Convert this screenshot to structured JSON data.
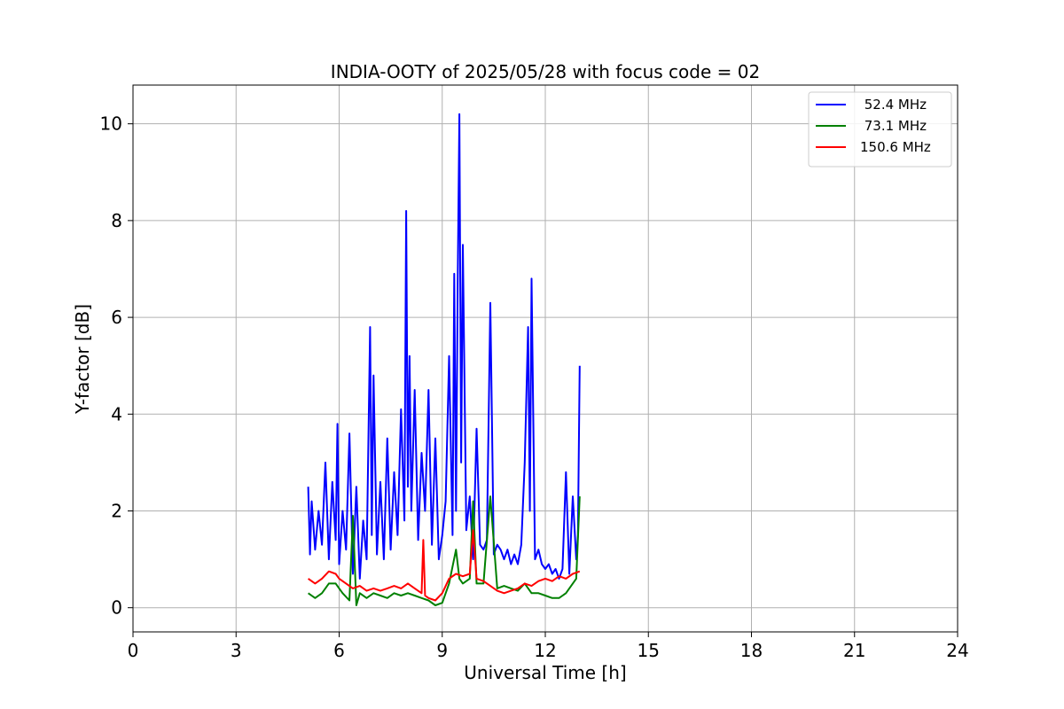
{
  "chart_data": {
    "type": "line",
    "title": "INDIA-OOTY of 2025/05/28 with focus code = 02",
    "xlabel": "Universal Time [h]",
    "ylabel": "Y-factor [dB]",
    "xlim": [
      0,
      24
    ],
    "ylim": [
      -0.5,
      10.8
    ],
    "xticks": [
      0,
      3,
      6,
      9,
      12,
      15,
      18,
      21,
      24
    ],
    "yticks": [
      0,
      2,
      4,
      6,
      8,
      10
    ],
    "grid": true,
    "legend_position": "top-right",
    "series": [
      {
        "name": " 52.4 MHz",
        "color": "#0000ff",
        "x": [
          5.1,
          5.15,
          5.2,
          5.3,
          5.4,
          5.5,
          5.6,
          5.7,
          5.8,
          5.9,
          5.95,
          6.0,
          6.1,
          6.2,
          6.3,
          6.4,
          6.5,
          6.6,
          6.7,
          6.8,
          6.9,
          6.95,
          7.0,
          7.1,
          7.2,
          7.3,
          7.4,
          7.5,
          7.6,
          7.7,
          7.8,
          7.9,
          7.95,
          8.0,
          8.05,
          8.1,
          8.2,
          8.3,
          8.4,
          8.5,
          8.6,
          8.7,
          8.8,
          8.9,
          9.0,
          9.1,
          9.2,
          9.3,
          9.35,
          9.4,
          9.45,
          9.5,
          9.55,
          9.6,
          9.7,
          9.8,
          9.9,
          10.0,
          10.1,
          10.2,
          10.3,
          10.4,
          10.5,
          10.6,
          10.7,
          10.8,
          10.9,
          11.0,
          11.1,
          11.2,
          11.3,
          11.4,
          11.5,
          11.55,
          11.6,
          11.7,
          11.8,
          11.9,
          12.0,
          12.1,
          12.2,
          12.3,
          12.4,
          12.5,
          12.6,
          12.7,
          12.8,
          12.9,
          12.95,
          13.0
        ],
        "y": [
          2.5,
          1.1,
          2.2,
          1.2,
          2.0,
          1.3,
          3.0,
          1.0,
          2.6,
          1.4,
          3.8,
          0.9,
          2.0,
          1.2,
          3.6,
          0.7,
          2.5,
          0.6,
          1.8,
          1.0,
          5.8,
          1.5,
          4.8,
          1.1,
          2.6,
          1.0,
          3.5,
          1.2,
          2.8,
          1.5,
          4.1,
          1.8,
          8.2,
          2.5,
          5.2,
          2.0,
          4.5,
          1.4,
          3.2,
          2.0,
          4.5,
          1.3,
          3.5,
          1.0,
          1.5,
          2.2,
          5.2,
          1.5,
          6.9,
          2.0,
          6.7,
          10.2,
          3.0,
          7.5,
          1.6,
          2.3,
          1.0,
          3.7,
          1.3,
          1.2,
          1.4,
          6.3,
          1.1,
          1.3,
          1.2,
          1.0,
          1.2,
          0.9,
          1.1,
          0.9,
          1.3,
          3.0,
          5.8,
          2.0,
          6.8,
          1.0,
          1.2,
          0.9,
          0.8,
          0.9,
          0.7,
          0.8,
          0.6,
          0.8,
          2.8,
          0.7,
          2.3,
          1.0,
          1.5,
          5.0
        ]
      },
      {
        "name": " 73.1 MHz",
        "color": "#008000",
        "x": [
          5.1,
          5.3,
          5.5,
          5.7,
          5.9,
          6.0,
          6.1,
          6.3,
          6.4,
          6.5,
          6.6,
          6.8,
          7.0,
          7.2,
          7.4,
          7.6,
          7.8,
          8.0,
          8.2,
          8.4,
          8.6,
          8.8,
          9.0,
          9.2,
          9.4,
          9.5,
          9.6,
          9.8,
          9.9,
          10.0,
          10.2,
          10.4,
          10.6,
          10.8,
          11.0,
          11.2,
          11.4,
          11.6,
          11.8,
          12.0,
          12.2,
          12.4,
          12.6,
          12.8,
          12.9,
          13.0
        ],
        "y": [
          0.3,
          0.2,
          0.3,
          0.5,
          0.5,
          0.4,
          0.3,
          0.15,
          1.9,
          0.05,
          0.3,
          0.2,
          0.3,
          0.25,
          0.2,
          0.3,
          0.25,
          0.3,
          0.25,
          0.2,
          0.15,
          0.05,
          0.1,
          0.5,
          1.2,
          0.6,
          0.5,
          0.6,
          2.2,
          0.5,
          0.5,
          2.3,
          0.4,
          0.45,
          0.4,
          0.35,
          0.5,
          0.3,
          0.3,
          0.25,
          0.2,
          0.2,
          0.3,
          0.5,
          0.6,
          2.3
        ]
      },
      {
        "name": "150.6 MHz",
        "color": "#ff0000",
        "x": [
          5.1,
          5.3,
          5.5,
          5.7,
          5.9,
          6.0,
          6.2,
          6.4,
          6.6,
          6.8,
          7.0,
          7.2,
          7.4,
          7.6,
          7.8,
          8.0,
          8.2,
          8.4,
          8.45,
          8.5,
          8.6,
          8.8,
          9.0,
          9.2,
          9.4,
          9.6,
          9.8,
          9.9,
          10.0,
          10.2,
          10.4,
          10.6,
          10.8,
          11.0,
          11.2,
          11.4,
          11.6,
          11.8,
          12.0,
          12.2,
          12.4,
          12.6,
          12.8,
          13.0
        ],
        "y": [
          0.6,
          0.5,
          0.6,
          0.75,
          0.7,
          0.6,
          0.5,
          0.4,
          0.45,
          0.35,
          0.4,
          0.35,
          0.4,
          0.45,
          0.4,
          0.5,
          0.4,
          0.3,
          1.4,
          0.25,
          0.2,
          0.15,
          0.3,
          0.6,
          0.7,
          0.65,
          0.7,
          1.6,
          0.6,
          0.55,
          0.45,
          0.35,
          0.3,
          0.35,
          0.4,
          0.5,
          0.45,
          0.55,
          0.6,
          0.55,
          0.65,
          0.6,
          0.7,
          0.75
        ]
      }
    ]
  }
}
